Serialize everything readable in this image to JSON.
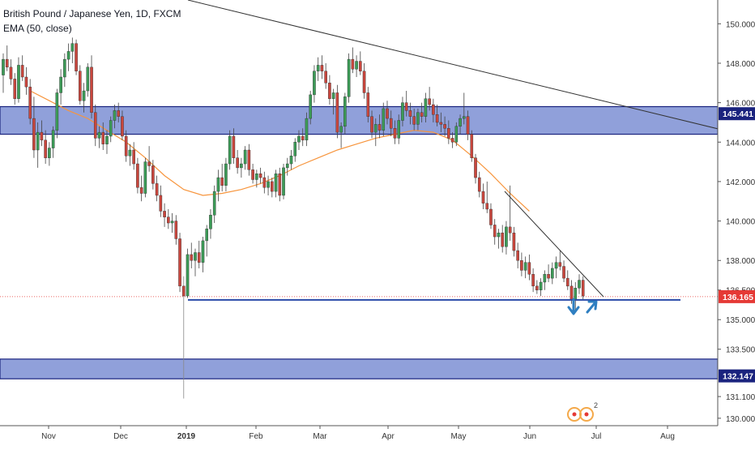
{
  "header": {
    "title": "British Pound / Japanese Yen, 1D, FXCM",
    "indicator": "EMA (50, close)"
  },
  "price_labels": {
    "resistance": "145.441",
    "current": "136.165",
    "support": "132.147"
  },
  "watermark": {
    "superscript": "2"
  },
  "colors": {
    "up": "#3c9b57",
    "down": "#c9463d",
    "ema": "#f7953d",
    "zone_fill": "#7c8fd3",
    "zone_border": "#1a237e",
    "current_label": "#e53935",
    "support_line": "#2a4aa8",
    "arrow": "#2f7fc1"
  },
  "chart_data": {
    "type": "candlestick",
    "title": "British Pound / Japanese Yen, 1D, FXCM",
    "y_ticks": [
      "150.000",
      "148.000",
      "146.000",
      "144.000",
      "142.000",
      "140.000",
      "138.000",
      "136.500",
      "135.000",
      "133.500",
      "131.100",
      "130.000"
    ],
    "x_ticks": [
      "Nov",
      "Dec",
      "2019",
      "Feb",
      "Mar",
      "Apr",
      "May",
      "Jun",
      "Jul",
      "Aug"
    ],
    "ylim": [
      129.5,
      151
    ],
    "resistance_zone": [
      144.4,
      145.8
    ],
    "support_zone": [
      132.0,
      133.0
    ],
    "support_line": 136.0,
    "last_price": 136.165,
    "indicator": "EMA (50, close)",
    "grid": false,
    "ohlc": [
      [
        147.4,
        148.5,
        146.5,
        148.2
      ],
      [
        148.2,
        148.9,
        147.6,
        147.8
      ],
      [
        147.8,
        148.2,
        146.9,
        147.2
      ],
      [
        147.2,
        147.5,
        145.9,
        146.2
      ],
      [
        146.2,
        148.3,
        146.0,
        147.9
      ],
      [
        147.9,
        148.4,
        147.1,
        147.3
      ],
      [
        147.3,
        147.8,
        146.4,
        146.8
      ],
      [
        146.8,
        147.2,
        144.9,
        145.2
      ],
      [
        145.2,
        146.3,
        143.2,
        143.6
      ],
      [
        143.6,
        145.0,
        142.7,
        144.5
      ],
      [
        144.5,
        145.1,
        143.8,
        144.1
      ],
      [
        144.1,
        144.6,
        142.9,
        143.2
      ],
      [
        143.2,
        144.0,
        142.8,
        143.7
      ],
      [
        143.7,
        144.8,
        143.2,
        144.6
      ],
      [
        144.6,
        146.7,
        144.2,
        146.5
      ],
      [
        146.5,
        147.7,
        145.9,
        147.3
      ],
      [
        147.3,
        148.5,
        146.8,
        148.2
      ],
      [
        148.2,
        149.0,
        147.6,
        148.6
      ],
      [
        148.6,
        149.3,
        148.0,
        149.0
      ],
      [
        149.0,
        149.2,
        147.4,
        147.6
      ],
      [
        147.6,
        147.9,
        145.9,
        146.1
      ],
      [
        146.1,
        147.0,
        145.5,
        146.6
      ],
      [
        146.6,
        148.0,
        146.3,
        147.8
      ],
      [
        147.8,
        148.4,
        145.2,
        145.5
      ],
      [
        145.5,
        145.9,
        143.8,
        144.2
      ],
      [
        144.2,
        144.8,
        143.7,
        144.5
      ],
      [
        144.5,
        145.0,
        143.6,
        143.9
      ],
      [
        143.9,
        144.6,
        143.4,
        144.3
      ],
      [
        144.3,
        145.3,
        144.0,
        145.1
      ],
      [
        145.1,
        145.9,
        144.7,
        145.6
      ],
      [
        145.6,
        146.0,
        145.0,
        145.3
      ],
      [
        145.3,
        145.6,
        144.1,
        144.3
      ],
      [
        144.3,
        144.6,
        143.0,
        143.3
      ],
      [
        143.3,
        143.9,
        142.8,
        143.6
      ],
      [
        143.6,
        144.0,
        142.6,
        142.9
      ],
      [
        142.9,
        143.2,
        141.4,
        141.7
      ],
      [
        141.7,
        142.3,
        141.0,
        141.4
      ],
      [
        141.4,
        143.2,
        141.2,
        143.0
      ],
      [
        143.0,
        143.8,
        142.5,
        142.8
      ],
      [
        142.8,
        143.1,
        141.6,
        141.9
      ],
      [
        141.9,
        142.3,
        141.0,
        141.3
      ],
      [
        141.3,
        141.8,
        140.2,
        140.5
      ],
      [
        140.5,
        140.9,
        139.7,
        140.2
      ],
      [
        140.2,
        140.6,
        139.6,
        139.9
      ],
      [
        139.9,
        140.4,
        139.4,
        140.0
      ],
      [
        140.0,
        140.3,
        138.8,
        139.1
      ],
      [
        139.1,
        139.4,
        136.4,
        136.7
      ],
      [
        136.7,
        137.2,
        131.0,
        136.2
      ],
      [
        136.2,
        138.6,
        136.1,
        138.3
      ],
      [
        138.3,
        138.9,
        137.6,
        138.0
      ],
      [
        138.0,
        138.6,
        137.2,
        138.4
      ],
      [
        138.4,
        139.0,
        137.6,
        137.9
      ],
      [
        137.9,
        139.2,
        137.4,
        139.0
      ],
      [
        139.0,
        139.8,
        138.2,
        139.6
      ],
      [
        139.6,
        140.6,
        139.1,
        140.3
      ],
      [
        140.3,
        141.8,
        139.9,
        141.5
      ],
      [
        141.5,
        142.6,
        141.0,
        142.2
      ],
      [
        142.2,
        142.9,
        141.5,
        141.8
      ],
      [
        141.8,
        143.2,
        141.5,
        142.9
      ],
      [
        142.9,
        144.6,
        142.6,
        144.3
      ],
      [
        144.3,
        144.7,
        142.9,
        143.2
      ],
      [
        143.2,
        143.6,
        142.4,
        142.7
      ],
      [
        142.7,
        143.2,
        142.2,
        142.9
      ],
      [
        142.9,
        143.8,
        142.6,
        143.6
      ],
      [
        143.6,
        143.9,
        142.3,
        142.6
      ],
      [
        142.6,
        142.9,
        141.9,
        142.1
      ],
      [
        142.1,
        142.6,
        141.7,
        142.4
      ],
      [
        142.4,
        142.7,
        141.9,
        142.2
      ],
      [
        142.2,
        142.5,
        141.4,
        141.7
      ],
      [
        141.7,
        142.3,
        141.3,
        142.0
      ],
      [
        142.0,
        142.2,
        141.2,
        141.5
      ],
      [
        141.5,
        142.6,
        141.2,
        142.4
      ],
      [
        142.4,
        142.7,
        141.0,
        141.3
      ],
      [
        141.3,
        142.9,
        141.1,
        142.7
      ],
      [
        142.7,
        143.2,
        142.3,
        142.9
      ],
      [
        142.9,
        143.6,
        142.6,
        143.3
      ],
      [
        143.3,
        144.2,
        143.0,
        144.0
      ],
      [
        144.0,
        144.6,
        143.6,
        144.3
      ],
      [
        144.3,
        144.7,
        143.8,
        144.1
      ],
      [
        144.1,
        145.5,
        143.8,
        145.2
      ],
      [
        145.2,
        146.6,
        144.9,
        146.4
      ],
      [
        146.4,
        147.9,
        146.0,
        147.6
      ],
      [
        147.6,
        148.3,
        147.1,
        147.9
      ],
      [
        147.9,
        148.4,
        147.2,
        147.6
      ],
      [
        147.6,
        148.0,
        146.7,
        147.0
      ],
      [
        147.0,
        147.4,
        145.9,
        146.2
      ],
      [
        146.2,
        146.7,
        145.4,
        146.5
      ],
      [
        146.5,
        146.9,
        144.2,
        144.5
      ],
      [
        144.5,
        145.0,
        143.7,
        144.8
      ],
      [
        144.8,
        146.5,
        144.4,
        146.3
      ],
      [
        146.3,
        148.5,
        146.0,
        148.2
      ],
      [
        148.2,
        148.8,
        147.5,
        147.7
      ],
      [
        147.7,
        148.4,
        147.3,
        148.1
      ],
      [
        148.1,
        148.6,
        147.4,
        147.6
      ],
      [
        147.6,
        148.0,
        146.2,
        146.5
      ],
      [
        146.5,
        146.8,
        145.0,
        145.3
      ],
      [
        145.3,
        145.6,
        144.2,
        144.5
      ],
      [
        144.5,
        145.2,
        143.8,
        144.9
      ],
      [
        144.9,
        145.4,
        144.2,
        144.6
      ],
      [
        144.6,
        146.0,
        144.3,
        145.7
      ],
      [
        145.7,
        146.1,
        144.9,
        145.2
      ],
      [
        145.2,
        145.6,
        144.3,
        144.7
      ],
      [
        144.7,
        145.1,
        143.9,
        144.2
      ],
      [
        144.2,
        145.4,
        143.9,
        145.1
      ],
      [
        145.1,
        146.3,
        144.8,
        146.0
      ],
      [
        146.0,
        146.6,
        145.3,
        145.6
      ],
      [
        145.6,
        146.0,
        144.9,
        145.3
      ],
      [
        145.3,
        145.7,
        144.6,
        144.9
      ],
      [
        144.9,
        145.7,
        144.6,
        145.5
      ],
      [
        145.5,
        146.0,
        145.0,
        145.3
      ],
      [
        145.3,
        146.5,
        145.0,
        146.2
      ],
      [
        146.2,
        146.8,
        145.6,
        145.9
      ],
      [
        145.9,
        146.2,
        145.0,
        145.4
      ],
      [
        145.4,
        145.9,
        144.8,
        145.0
      ],
      [
        145.0,
        145.5,
        144.5,
        144.9
      ],
      [
        144.9,
        145.3,
        144.3,
        144.7
      ],
      [
        144.7,
        145.1,
        143.9,
        144.2
      ],
      [
        144.2,
        144.5,
        143.7,
        144.0
      ],
      [
        144.0,
        145.0,
        143.8,
        144.8
      ],
      [
        144.8,
        145.4,
        144.4,
        145.2
      ],
      [
        145.2,
        146.5,
        144.9,
        145.3
      ],
      [
        145.3,
        145.6,
        144.1,
        144.4
      ],
      [
        144.4,
        144.6,
        143.0,
        143.2
      ],
      [
        143.2,
        143.4,
        141.9,
        142.2
      ],
      [
        142.2,
        142.5,
        141.2,
        141.5
      ],
      [
        141.5,
        141.9,
        140.6,
        140.9
      ],
      [
        140.9,
        142.0,
        140.4,
        140.6
      ],
      [
        140.6,
        140.9,
        139.6,
        139.8
      ],
      [
        139.8,
        140.1,
        138.8,
        139.2
      ],
      [
        139.2,
        139.6,
        138.6,
        139.4
      ],
      [
        139.4,
        139.8,
        138.4,
        138.7
      ],
      [
        138.7,
        140.0,
        138.3,
        139.7
      ],
      [
        139.7,
        141.8,
        139.0,
        139.4
      ],
      [
        139.4,
        139.7,
        138.2,
        138.5
      ],
      [
        138.5,
        138.9,
        137.6,
        138.0
      ],
      [
        138.0,
        138.4,
        137.2,
        137.5
      ],
      [
        137.5,
        138.2,
        137.1,
        137.9
      ],
      [
        137.9,
        138.3,
        137.0,
        137.3
      ],
      [
        137.3,
        137.6,
        136.4,
        136.7
      ],
      [
        136.7,
        137.0,
        136.3,
        136.5
      ],
      [
        136.5,
        137.1,
        136.2,
        136.9
      ],
      [
        136.9,
        137.5,
        136.5,
        137.3
      ],
      [
        137.3,
        137.8,
        136.9,
        137.1
      ],
      [
        137.1,
        137.9,
        136.8,
        137.6
      ],
      [
        137.6,
        138.2,
        137.1,
        137.9
      ],
      [
        137.9,
        138.5,
        137.5,
        137.7
      ],
      [
        137.7,
        138.0,
        136.9,
        137.1
      ],
      [
        137.1,
        137.5,
        136.5,
        136.7
      ],
      [
        136.7,
        137.0,
        135.8,
        136.0
      ],
      [
        136.0,
        136.9,
        135.5,
        136.6
      ],
      [
        136.6,
        137.3,
        136.3,
        137.0
      ],
      [
        137.0,
        137.2,
        136.0,
        136.2
      ]
    ],
    "ema": [
      146.6,
      146.1,
      145.6,
      145.2,
      144.6,
      144.0,
      143.2,
      142.3,
      141.6,
      141.3,
      141.4,
      141.6,
      141.9,
      142.3,
      142.8,
      143.2,
      143.6,
      143.9,
      144.2,
      144.4,
      144.6,
      144.5,
      144.1,
      143.3,
      142.4,
      141.4,
      140.5
    ]
  }
}
